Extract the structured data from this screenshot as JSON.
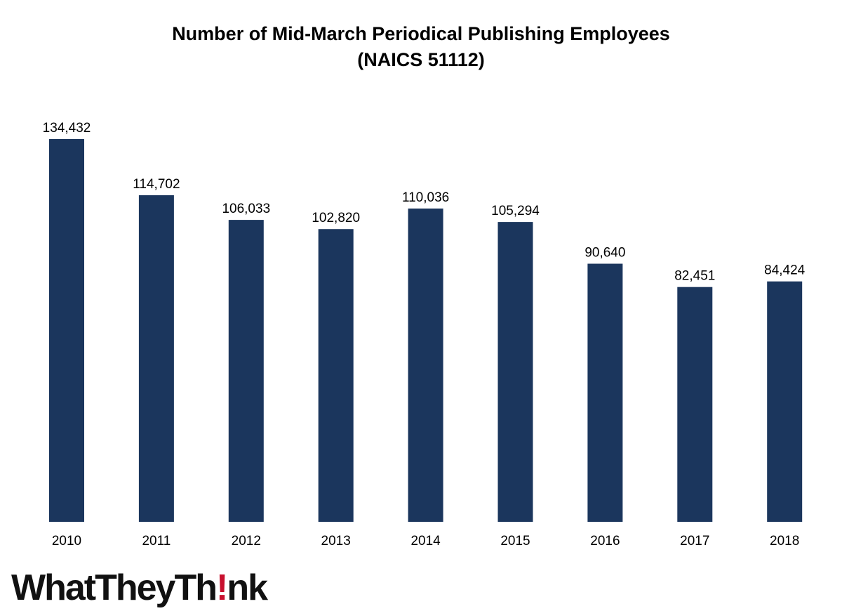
{
  "chart_data": {
    "type": "bar",
    "title": "Number of Mid-March Periodical Publishing Employees",
    "subtitle": "(NAICS 51112)",
    "categories": [
      "2010",
      "2011",
      "2012",
      "2013",
      "2014",
      "2015",
      "2016",
      "2017",
      "2018"
    ],
    "values": [
      134432,
      114702,
      106033,
      102820,
      110036,
      105294,
      90640,
      82451,
      84424
    ],
    "data_labels": [
      "134,432",
      "114,702",
      "106,033",
      "102,820",
      "110,036",
      "105,294",
      "90,640",
      "82,451",
      "84,424"
    ],
    "xlabel": "",
    "ylabel": "",
    "ylim": [
      0,
      134432
    ],
    "grid": false,
    "legend": "none",
    "bar_color": "#1b365d"
  },
  "logo": {
    "text_before": "WhatTheyTh",
    "mark": "!",
    "text_after": "nk",
    "mark_color": "#c8102e"
  }
}
